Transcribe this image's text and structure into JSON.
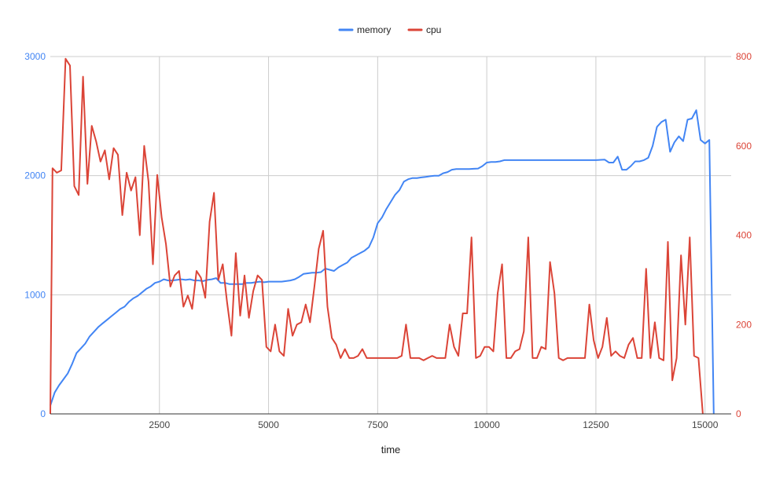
{
  "chart_data": {
    "type": "line",
    "title": "",
    "xlabel": "time",
    "ylabel_left": "",
    "ylabel_right": "",
    "xlim": [
      0,
      15600
    ],
    "ylim_left": [
      0,
      3000
    ],
    "ylim_right": [
      0,
      800
    ],
    "x_ticks": [
      2500,
      5000,
      7500,
      10000,
      12500,
      15000
    ],
    "x_tick_labels": [
      "2500",
      "5000",
      "7500",
      "10000",
      "12500",
      "15000"
    ],
    "y_left_ticks": [
      0,
      1000,
      2000,
      3000
    ],
    "y_left_tick_labels": [
      "0",
      "1000",
      "2000",
      "3000"
    ],
    "y_right_ticks": [
      0,
      200,
      400,
      600,
      800
    ],
    "y_right_tick_labels": [
      "0",
      "200",
      "400",
      "600",
      "800"
    ],
    "grid": true,
    "legend_position": "top",
    "series": [
      {
        "name": "memory",
        "axis": "left",
        "color": "#4285f4",
        "points": [
          [
            0,
            70
          ],
          [
            100,
            180
          ],
          [
            200,
            240
          ],
          [
            300,
            290
          ],
          [
            400,
            340
          ],
          [
            500,
            420
          ],
          [
            600,
            510
          ],
          [
            700,
            550
          ],
          [
            800,
            590
          ],
          [
            900,
            650
          ],
          [
            1000,
            690
          ],
          [
            1100,
            730
          ],
          [
            1200,
            760
          ],
          [
            1300,
            790
          ],
          [
            1400,
            820
          ],
          [
            1500,
            850
          ],
          [
            1600,
            880
          ],
          [
            1700,
            900
          ],
          [
            1800,
            940
          ],
          [
            1900,
            970
          ],
          [
            2000,
            990
          ],
          [
            2100,
            1020
          ],
          [
            2200,
            1050
          ],
          [
            2300,
            1070
          ],
          [
            2400,
            1100
          ],
          [
            2500,
            1110
          ],
          [
            2600,
            1130
          ],
          [
            2700,
            1120
          ],
          [
            2800,
            1120
          ],
          [
            2900,
            1125
          ],
          [
            3000,
            1130
          ],
          [
            3100,
            1125
          ],
          [
            3200,
            1130
          ],
          [
            3300,
            1120
          ],
          [
            3400,
            1120
          ],
          [
            3500,
            1115
          ],
          [
            3600,
            1125
          ],
          [
            3700,
            1130
          ],
          [
            3800,
            1140
          ],
          [
            3900,
            1100
          ],
          [
            4000,
            1100
          ],
          [
            4100,
            1090
          ],
          [
            4200,
            1090
          ],
          [
            4300,
            1090
          ],
          [
            4400,
            1090
          ],
          [
            4500,
            1100
          ],
          [
            4600,
            1100
          ],
          [
            4700,
            1105
          ],
          [
            4800,
            1110
          ],
          [
            4900,
            1105
          ],
          [
            5000,
            1110
          ],
          [
            5100,
            1110
          ],
          [
            5200,
            1110
          ],
          [
            5300,
            1110
          ],
          [
            5400,
            1115
          ],
          [
            5500,
            1120
          ],
          [
            5600,
            1130
          ],
          [
            5700,
            1150
          ],
          [
            5800,
            1175
          ],
          [
            5900,
            1180
          ],
          [
            6000,
            1185
          ],
          [
            6100,
            1185
          ],
          [
            6200,
            1190
          ],
          [
            6300,
            1220
          ],
          [
            6400,
            1210
          ],
          [
            6500,
            1200
          ],
          [
            6600,
            1230
          ],
          [
            6700,
            1250
          ],
          [
            6800,
            1270
          ],
          [
            6900,
            1310
          ],
          [
            7000,
            1330
          ],
          [
            7100,
            1350
          ],
          [
            7200,
            1370
          ],
          [
            7300,
            1400
          ],
          [
            7400,
            1480
          ],
          [
            7500,
            1600
          ],
          [
            7600,
            1650
          ],
          [
            7700,
            1720
          ],
          [
            7800,
            1780
          ],
          [
            7900,
            1840
          ],
          [
            8000,
            1880
          ],
          [
            8100,
            1950
          ],
          [
            8200,
            1970
          ],
          [
            8300,
            1980
          ],
          [
            8400,
            1980
          ],
          [
            8500,
            1985
          ],
          [
            8600,
            1990
          ],
          [
            8700,
            1995
          ],
          [
            8800,
            2000
          ],
          [
            8900,
            2000
          ],
          [
            9000,
            2020
          ],
          [
            9100,
            2030
          ],
          [
            9200,
            2050
          ],
          [
            9300,
            2055
          ],
          [
            9400,
            2055
          ],
          [
            9500,
            2055
          ],
          [
            9600,
            2055
          ],
          [
            9700,
            2058
          ],
          [
            9800,
            2060
          ],
          [
            9900,
            2080
          ],
          [
            10000,
            2110
          ],
          [
            10100,
            2115
          ],
          [
            10200,
            2115
          ],
          [
            10300,
            2120
          ],
          [
            10400,
            2130
          ],
          [
            10500,
            2130
          ],
          [
            10600,
            2130
          ],
          [
            10700,
            2130
          ],
          [
            10800,
            2130
          ],
          [
            10900,
            2130
          ],
          [
            11000,
            2130
          ],
          [
            11500,
            2130
          ],
          [
            12000,
            2130
          ],
          [
            12500,
            2130
          ],
          [
            12700,
            2135
          ],
          [
            12800,
            2110
          ],
          [
            12900,
            2110
          ],
          [
            13000,
            2160
          ],
          [
            13100,
            2050
          ],
          [
            13200,
            2050
          ],
          [
            13300,
            2080
          ],
          [
            13400,
            2120
          ],
          [
            13500,
            2120
          ],
          [
            13600,
            2130
          ],
          [
            13700,
            2150
          ],
          [
            13800,
            2250
          ],
          [
            13900,
            2410
          ],
          [
            14000,
            2450
          ],
          [
            14100,
            2470
          ],
          [
            14200,
            2200
          ],
          [
            14300,
            2280
          ],
          [
            14400,
            2330
          ],
          [
            14500,
            2290
          ],
          [
            14600,
            2470
          ],
          [
            14700,
            2480
          ],
          [
            14800,
            2550
          ],
          [
            14900,
            2300
          ],
          [
            15000,
            2270
          ],
          [
            15100,
            2300
          ],
          [
            15200,
            0
          ]
        ]
      },
      {
        "name": "cpu",
        "axis": "right",
        "color": "#db4437",
        "points": [
          [
            0,
            0
          ],
          [
            50,
            550
          ],
          [
            150,
            540
          ],
          [
            250,
            545
          ],
          [
            350,
            795
          ],
          [
            450,
            780
          ],
          [
            550,
            510
          ],
          [
            650,
            490
          ],
          [
            750,
            755
          ],
          [
            850,
            515
          ],
          [
            950,
            645
          ],
          [
            1050,
            610
          ],
          [
            1150,
            565
          ],
          [
            1250,
            590
          ],
          [
            1350,
            525
          ],
          [
            1450,
            595
          ],
          [
            1550,
            580
          ],
          [
            1650,
            445
          ],
          [
            1750,
            540
          ],
          [
            1850,
            500
          ],
          [
            1950,
            530
          ],
          [
            2050,
            400
          ],
          [
            2150,
            600
          ],
          [
            2250,
            520
          ],
          [
            2350,
            335
          ],
          [
            2450,
            535
          ],
          [
            2550,
            440
          ],
          [
            2650,
            380
          ],
          [
            2750,
            285
          ],
          [
            2850,
            310
          ],
          [
            2950,
            320
          ],
          [
            3050,
            240
          ],
          [
            3150,
            265
          ],
          [
            3250,
            235
          ],
          [
            3350,
            320
          ],
          [
            3450,
            305
          ],
          [
            3550,
            260
          ],
          [
            3650,
            430
          ],
          [
            3750,
            495
          ],
          [
            3850,
            300
          ],
          [
            3950,
            335
          ],
          [
            4050,
            250
          ],
          [
            4150,
            175
          ],
          [
            4250,
            360
          ],
          [
            4350,
            220
          ],
          [
            4450,
            310
          ],
          [
            4550,
            215
          ],
          [
            4650,
            275
          ],
          [
            4750,
            310
          ],
          [
            4850,
            300
          ],
          [
            4950,
            150
          ],
          [
            5050,
            140
          ],
          [
            5150,
            200
          ],
          [
            5250,
            140
          ],
          [
            5350,
            130
          ],
          [
            5450,
            235
          ],
          [
            5550,
            175
          ],
          [
            5650,
            200
          ],
          [
            5750,
            205
          ],
          [
            5850,
            245
          ],
          [
            5950,
            205
          ],
          [
            6050,
            285
          ],
          [
            6150,
            370
          ],
          [
            6250,
            410
          ],
          [
            6350,
            240
          ],
          [
            6450,
            170
          ],
          [
            6550,
            155
          ],
          [
            6650,
            125
          ],
          [
            6750,
            145
          ],
          [
            6850,
            125
          ],
          [
            6950,
            125
          ],
          [
            7050,
            130
          ],
          [
            7150,
            145
          ],
          [
            7250,
            125
          ],
          [
            7350,
            125
          ],
          [
            7450,
            125
          ],
          [
            7550,
            125
          ],
          [
            7650,
            125
          ],
          [
            7750,
            125
          ],
          [
            7850,
            125
          ],
          [
            7950,
            125
          ],
          [
            8050,
            130
          ],
          [
            8150,
            200
          ],
          [
            8250,
            125
          ],
          [
            8350,
            125
          ],
          [
            8450,
            125
          ],
          [
            8550,
            120
          ],
          [
            8650,
            125
          ],
          [
            8750,
            130
          ],
          [
            8850,
            125
          ],
          [
            8950,
            125
          ],
          [
            9050,
            125
          ],
          [
            9150,
            200
          ],
          [
            9250,
            150
          ],
          [
            9350,
            130
          ],
          [
            9450,
            225
          ],
          [
            9550,
            225
          ],
          [
            9650,
            395
          ],
          [
            9750,
            125
          ],
          [
            9850,
            130
          ],
          [
            9950,
            150
          ],
          [
            10050,
            150
          ],
          [
            10150,
            140
          ],
          [
            10250,
            270
          ],
          [
            10350,
            335
          ],
          [
            10450,
            125
          ],
          [
            10550,
            125
          ],
          [
            10650,
            140
          ],
          [
            10750,
            145
          ],
          [
            10850,
            185
          ],
          [
            10950,
            395
          ],
          [
            11050,
            125
          ],
          [
            11150,
            125
          ],
          [
            11250,
            150
          ],
          [
            11350,
            145
          ],
          [
            11450,
            340
          ],
          [
            11550,
            270
          ],
          [
            11650,
            125
          ],
          [
            11750,
            120
          ],
          [
            11850,
            125
          ],
          [
            11950,
            125
          ],
          [
            12050,
            125
          ],
          [
            12150,
            125
          ],
          [
            12250,
            125
          ],
          [
            12350,
            245
          ],
          [
            12450,
            165
          ],
          [
            12550,
            125
          ],
          [
            12650,
            150
          ],
          [
            12750,
            215
          ],
          [
            12850,
            130
          ],
          [
            12950,
            140
          ],
          [
            13050,
            130
          ],
          [
            13150,
            125
          ],
          [
            13250,
            155
          ],
          [
            13350,
            170
          ],
          [
            13450,
            125
          ],
          [
            13550,
            125
          ],
          [
            13650,
            325
          ],
          [
            13750,
            125
          ],
          [
            13850,
            205
          ],
          [
            13950,
            125
          ],
          [
            14050,
            120
          ],
          [
            14150,
            385
          ],
          [
            14250,
            75
          ],
          [
            14350,
            125
          ],
          [
            14450,
            355
          ],
          [
            14550,
            200
          ],
          [
            14650,
            395
          ],
          [
            14750,
            130
          ],
          [
            14850,
            125
          ],
          [
            14950,
            0
          ]
        ]
      }
    ]
  }
}
